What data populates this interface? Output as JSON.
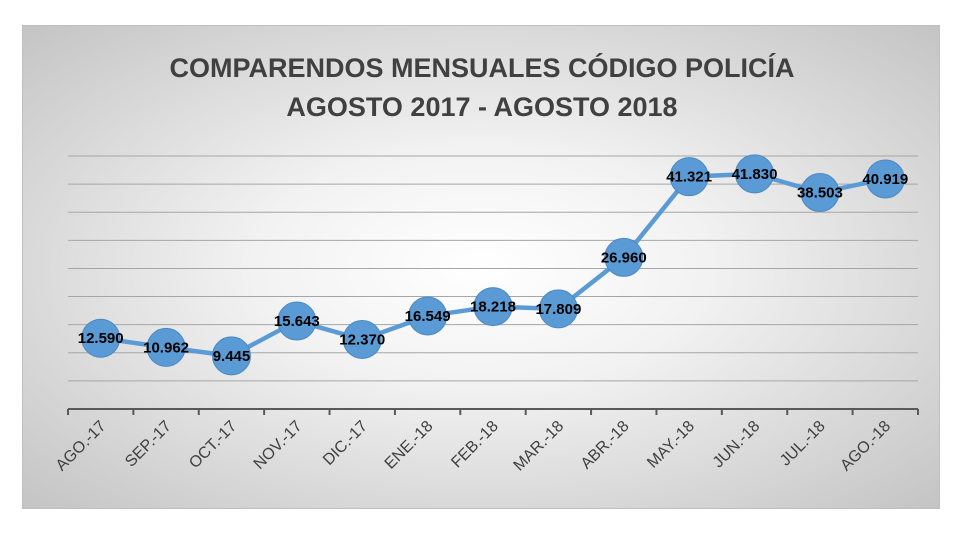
{
  "chart_data": {
    "type": "line",
    "title": [
      "COMPARENDOS MENSUALES CÓDIGO POLICÍA",
      "AGOSTO 2017 - AGOSTO 2018"
    ],
    "categories": [
      "AGO.-17",
      "SEP.-17",
      "OCT.-17",
      "NOV.-17",
      "DIC.-17",
      "ENE.-18",
      "FEB.-18",
      "MAR.-18",
      "ABR.-18",
      "MAY.-18",
      "JUN.-18",
      "JUL.-18",
      "AGO.-18"
    ],
    "series": [
      {
        "name": "Comparendos",
        "values": [
          12590,
          10962,
          9445,
          15643,
          12370,
          16549,
          18218,
          17809,
          26960,
          41321,
          41830,
          38503,
          40919
        ],
        "labels": [
          "12.590",
          "10.962",
          "9.445",
          "15.643",
          "12.370",
          "16.549",
          "18.218",
          "17.809",
          "26.960",
          "41.321",
          "41.830",
          "38.503",
          "40.919"
        ],
        "color": "#5b9bd5"
      }
    ],
    "xlabel": "",
    "ylabel": "",
    "ylim": [
      0,
      45000
    ],
    "grid": true,
    "legend": "none"
  }
}
